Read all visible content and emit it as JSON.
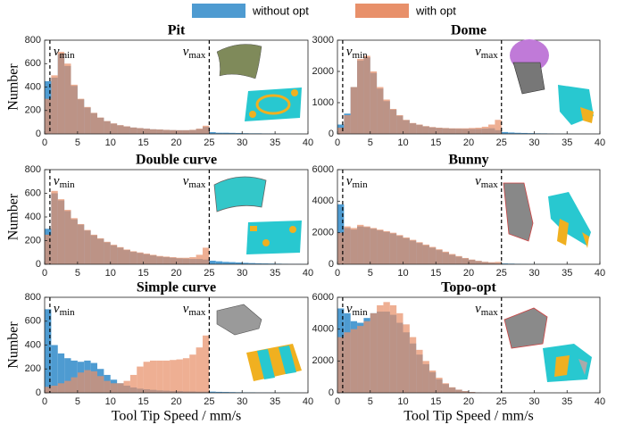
{
  "series_styles": [
    {
      "name": "without opt",
      "color": "#4e9bd1"
    },
    {
      "name": "with opt",
      "color": "#e8906a"
    }
  ],
  "overlay_opacity": 0.72,
  "chart_data": [
    {
      "type": "histogram",
      "title": "Pit",
      "ylabel": "Number",
      "bins": [
        0,
        1,
        2,
        3,
        4,
        5,
        6,
        7,
        8,
        9,
        10,
        11,
        12,
        13,
        14,
        15,
        16,
        17,
        18,
        19,
        20,
        21,
        22,
        23,
        24,
        25,
        26,
        27,
        28,
        29,
        30,
        31,
        32,
        33,
        34,
        35,
        36,
        37,
        38,
        39,
        40
      ],
      "series": [
        {
          "values": [
            450,
            480,
            680,
            580,
            410,
            295,
            225,
            178,
            138,
            108,
            88,
            73,
            63,
            54,
            49,
            44,
            39,
            37,
            34,
            32,
            31,
            31,
            33,
            42,
            60,
            15,
            10,
            10,
            9,
            8,
            6,
            5,
            5,
            4,
            4,
            3,
            2,
            2,
            2,
            1
          ]
        },
        {
          "values": [
            300,
            500,
            700,
            600,
            420,
            300,
            230,
            180,
            140,
            110,
            90,
            75,
            65,
            55,
            50,
            45,
            40,
            38,
            35,
            33,
            32,
            32,
            35,
            45,
            70,
            0,
            0,
            0,
            0,
            0,
            0,
            0,
            0,
            0,
            0,
            0,
            0,
            0,
            0,
            0
          ]
        }
      ],
      "xlim": [
        0,
        40
      ],
      "xticks": [
        0,
        5,
        10,
        15,
        20,
        25,
        30,
        35,
        40
      ],
      "ylim": [
        0,
        800
      ],
      "yticks": [
        0,
        200,
        400,
        600,
        800
      ],
      "vlines": [
        {
          "value": 0.8,
          "symbol": "v",
          "sub": "min"
        },
        {
          "value": 25,
          "symbol": "v",
          "sub": "max"
        }
      ]
    },
    {
      "type": "histogram",
      "title": "Dome",
      "bins": [
        0,
        1,
        2,
        3,
        4,
        5,
        6,
        7,
        8,
        9,
        10,
        11,
        12,
        13,
        14,
        15,
        16,
        17,
        18,
        19,
        20,
        21,
        22,
        23,
        24,
        25,
        26,
        27,
        28,
        29,
        30,
        31,
        32,
        33,
        34,
        35,
        36,
        37,
        38,
        39,
        40
      ],
      "series": [
        {
          "values": [
            300,
            650,
            1500,
            2350,
            2450,
            1950,
            1450,
            1050,
            780,
            580,
            440,
            340,
            290,
            240,
            210,
            190,
            180,
            170,
            165,
            160,
            160,
            160,
            170,
            180,
            120,
            60,
            45,
            35,
            30,
            25,
            20,
            18,
            15,
            12,
            10,
            8,
            6,
            5,
            4,
            3
          ]
        },
        {
          "values": [
            200,
            600,
            1500,
            2400,
            2500,
            2000,
            1500,
            1100,
            800,
            600,
            450,
            350,
            300,
            250,
            220,
            200,
            190,
            180,
            180,
            180,
            190,
            200,
            230,
            300,
            450,
            0,
            0,
            0,
            0,
            0,
            0,
            0,
            0,
            0,
            0,
            0,
            0,
            0,
            0,
            0
          ]
        }
      ],
      "xlim": [
        0,
        40
      ],
      "xticks": [
        0,
        5,
        10,
        15,
        20,
        25,
        30,
        35,
        40
      ],
      "ylim": [
        0,
        3000
      ],
      "yticks": [
        0,
        1000,
        2000,
        3000
      ],
      "vlines": [
        {
          "value": 0.8,
          "symbol": "v",
          "sub": "min"
        },
        {
          "value": 25,
          "symbol": "v",
          "sub": "max"
        }
      ]
    },
    {
      "type": "histogram",
      "title": "Double curve",
      "ylabel": "Number",
      "bins": [
        0,
        1,
        2,
        3,
        4,
        5,
        6,
        7,
        8,
        9,
        10,
        11,
        12,
        13,
        14,
        15,
        16,
        17,
        18,
        19,
        20,
        21,
        22,
        23,
        24,
        25,
        26,
        27,
        28,
        29,
        30,
        31,
        32,
        33,
        34,
        35,
        36,
        37,
        38,
        39,
        40
      ],
      "series": [
        {
          "values": [
            300,
            600,
            540,
            450,
            380,
            335,
            285,
            245,
            215,
            185,
            160,
            140,
            120,
            105,
            95,
            85,
            75,
            65,
            60,
            55,
            50,
            48,
            45,
            45,
            40,
            30,
            25,
            20,
            18,
            15,
            12,
            10,
            8,
            7,
            6,
            5,
            4,
            3,
            3,
            2
          ]
        },
        {
          "values": [
            250,
            620,
            550,
            460,
            390,
            340,
            290,
            250,
            220,
            190,
            165,
            145,
            125,
            110,
            100,
            90,
            80,
            70,
            65,
            60,
            55,
            55,
            60,
            80,
            140,
            0,
            0,
            0,
            0,
            0,
            0,
            0,
            0,
            0,
            0,
            0,
            0,
            0,
            0,
            0
          ]
        }
      ],
      "xlim": [
        0,
        40
      ],
      "xticks": [
        0,
        5,
        10,
        15,
        20,
        25,
        30,
        35,
        40
      ],
      "ylim": [
        0,
        800
      ],
      "yticks": [
        0,
        200,
        400,
        600,
        800
      ],
      "vlines": [
        {
          "value": 0.8,
          "symbol": "v",
          "sub": "min"
        },
        {
          "value": 25,
          "symbol": "v",
          "sub": "max"
        }
      ]
    },
    {
      "type": "histogram",
      "title": "Bunny",
      "bins": [
        0,
        1,
        2,
        3,
        4,
        5,
        6,
        7,
        8,
        9,
        10,
        11,
        12,
        13,
        14,
        15,
        16,
        17,
        18,
        19,
        20,
        21,
        22,
        23,
        24,
        25,
        26,
        27,
        28,
        29,
        30,
        31,
        32,
        33,
        34,
        35,
        36,
        37,
        38,
        39,
        40
      ],
      "series": [
        {
          "values": [
            3800,
            2300,
            2200,
            2400,
            2350,
            2250,
            2150,
            2050,
            1950,
            1800,
            1650,
            1500,
            1350,
            1200,
            1050,
            900,
            750,
            600,
            480,
            370,
            280,
            200,
            140,
            100,
            80,
            50,
            40,
            30,
            25,
            20,
            15,
            12,
            10,
            8,
            6,
            5,
            4,
            3,
            2,
            1
          ]
        },
        {
          "values": [
            2000,
            2400,
            2300,
            2500,
            2400,
            2300,
            2200,
            2100,
            2000,
            1850,
            1700,
            1550,
            1400,
            1250,
            1100,
            950,
            800,
            650,
            520,
            400,
            300,
            220,
            160,
            130,
            150,
            0,
            0,
            0,
            0,
            0,
            0,
            0,
            0,
            0,
            0,
            0,
            0,
            0,
            0,
            0
          ]
        }
      ],
      "xlim": [
        0,
        40
      ],
      "xticks": [
        0,
        5,
        10,
        15,
        20,
        25,
        30,
        35,
        40
      ],
      "ylim": [
        0,
        6000
      ],
      "yticks": [
        0,
        2000,
        4000,
        6000
      ],
      "vlines": [
        {
          "value": 0.8,
          "symbol": "v",
          "sub": "min"
        },
        {
          "value": 25,
          "symbol": "v",
          "sub": "max"
        }
      ]
    },
    {
      "type": "histogram",
      "title": "Simple curve",
      "ylabel": "Number",
      "xlabel": "Tool Tip Speed / mm/s",
      "bins": [
        0,
        1,
        2,
        3,
        4,
        5,
        6,
        7,
        8,
        9,
        10,
        11,
        12,
        13,
        14,
        15,
        16,
        17,
        18,
        19,
        20,
        21,
        22,
        23,
        24,
        25,
        26,
        27,
        28,
        29,
        30,
        31,
        32,
        33,
        34,
        35,
        36,
        37,
        38,
        39,
        40
      ],
      "series": [
        {
          "values": [
            700,
            400,
            330,
            290,
            270,
            260,
            270,
            250,
            200,
            150,
            110,
            80,
            60,
            45,
            35,
            30,
            25,
            20,
            18,
            15,
            15,
            12,
            12,
            10,
            10,
            10,
            8,
            7,
            6,
            5,
            4,
            4,
            3,
            3,
            3,
            2,
            2,
            2,
            1,
            1
          ]
        },
        {
          "values": [
            50,
            60,
            80,
            100,
            130,
            170,
            190,
            180,
            140,
            100,
            80,
            80,
            100,
            150,
            220,
            260,
            270,
            270,
            270,
            275,
            280,
            290,
            320,
            380,
            480,
            0,
            0,
            0,
            0,
            0,
            0,
            0,
            0,
            0,
            0,
            0,
            0,
            0,
            0,
            0
          ]
        }
      ],
      "xlim": [
        0,
        40
      ],
      "xticks": [
        0,
        5,
        10,
        15,
        20,
        25,
        30,
        35,
        40
      ],
      "ylim": [
        0,
        800
      ],
      "yticks": [
        0,
        200,
        400,
        600,
        800
      ],
      "vlines": [
        {
          "value": 0.8,
          "symbol": "v",
          "sub": "min"
        },
        {
          "value": 25,
          "symbol": "v",
          "sub": "max"
        }
      ]
    },
    {
      "type": "histogram",
      "title": "Topo-opt",
      "xlabel": "Tool Tip Speed / mm/s",
      "bins": [
        0,
        1,
        2,
        3,
        4,
        5,
        6,
        7,
        8,
        9,
        10,
        11,
        12,
        13,
        14,
        15,
        16,
        17,
        18,
        19,
        20,
        21,
        22,
        23,
        24,
        25,
        26,
        27,
        28,
        29,
        30,
        31,
        32,
        33,
        34,
        35,
        36,
        37,
        38,
        39,
        40
      ],
      "series": [
        {
          "values": [
            5300,
            5000,
            4500,
            4400,
            4700,
            5000,
            5100,
            5100,
            4900,
            4400,
            3800,
            3100,
            2400,
            1800,
            1300,
            850,
            550,
            330,
            190,
            100,
            50,
            25,
            10,
            5,
            2,
            0,
            0,
            0,
            0,
            0,
            0,
            0,
            0,
            0,
            0,
            0,
            0,
            0,
            0,
            0
          ]
        },
        {
          "values": [
            3500,
            3800,
            4000,
            4200,
            4500,
            5000,
            5500,
            5700,
            5500,
            5000,
            4300,
            3500,
            2700,
            2000,
            1400,
            950,
            600,
            350,
            200,
            110,
            55,
            25,
            10,
            5,
            2,
            0,
            0,
            0,
            0,
            0,
            0,
            0,
            0,
            0,
            0,
            0,
            0,
            0,
            0,
            0
          ]
        }
      ],
      "xlim": [
        0,
        40
      ],
      "xticks": [
        0,
        5,
        10,
        15,
        20,
        25,
        30,
        35,
        40
      ],
      "ylim": [
        0,
        6000
      ],
      "yticks": [
        0,
        2000,
        4000,
        6000
      ],
      "vlines": [
        {
          "value": 0.8,
          "symbol": "v",
          "sub": "min"
        },
        {
          "value": 25,
          "symbol": "v",
          "sub": "max"
        }
      ]
    }
  ]
}
